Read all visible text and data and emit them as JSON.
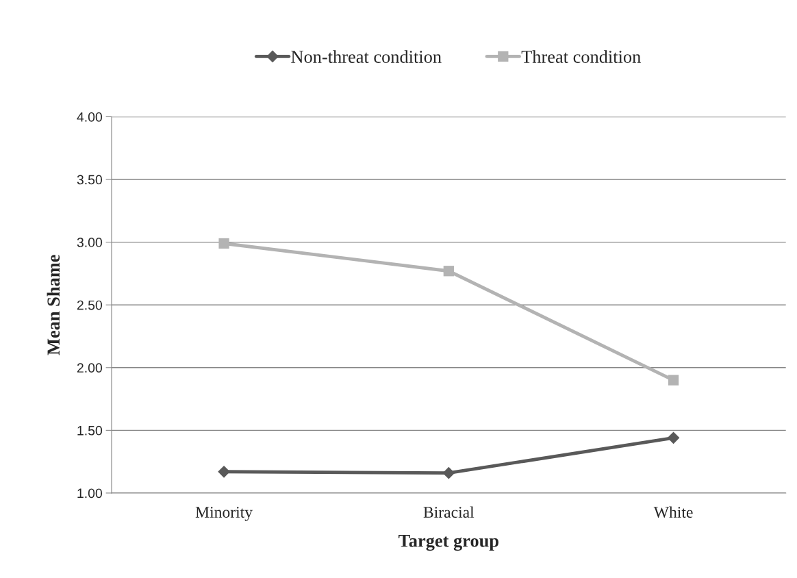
{
  "chart_data": {
    "type": "line",
    "xlabel": "Target group",
    "ylabel": "Mean Shame",
    "categories": [
      "Minority",
      "Biracial",
      "White"
    ],
    "series": [
      {
        "name": "Non-threat condition",
        "color": "#595959",
        "marker": "diamond",
        "values": [
          1.17,
          1.16,
          1.44
        ]
      },
      {
        "name": "Threat condition",
        "color": "#b3b3b3",
        "marker": "square",
        "values": [
          2.99,
          2.77,
          1.9
        ]
      }
    ],
    "ylim": [
      1.0,
      4.0
    ],
    "yticks": [
      {
        "value": 1.0,
        "label": "1.00"
      },
      {
        "value": 1.5,
        "label": "1.50"
      },
      {
        "value": 2.0,
        "label": "2.00"
      },
      {
        "value": 2.5,
        "label": "2.50"
      },
      {
        "value": 3.0,
        "label": "3.00"
      },
      {
        "value": 3.5,
        "label": "3.50"
      },
      {
        "value": 4.0,
        "label": "4.00"
      }
    ],
    "grid": "y",
    "legend": "top",
    "line_style": "solid"
  }
}
